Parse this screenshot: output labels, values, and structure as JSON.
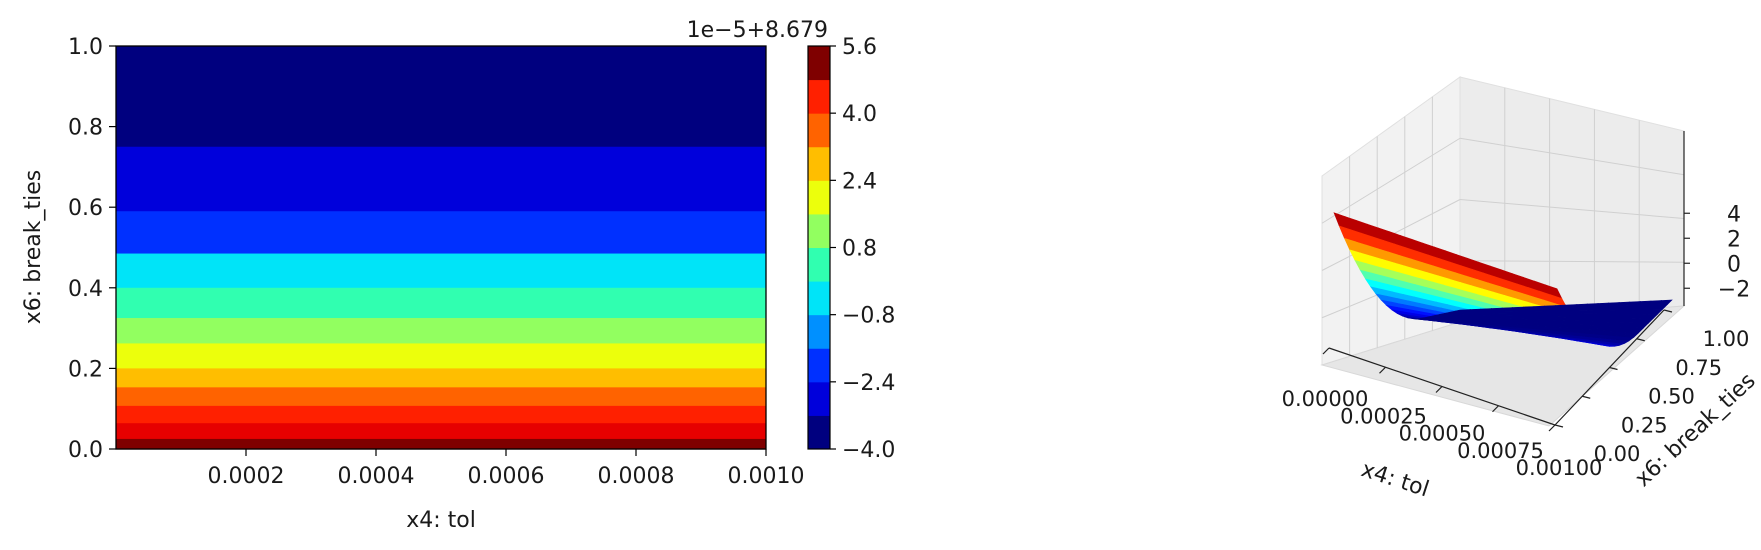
{
  "chart_data": [
    {
      "type": "heatmap",
      "subtype": "filled-contour",
      "xlabel": "x4: tol",
      "ylabel": "x6: break_ties",
      "xlim": [
        0.0,
        0.001
      ],
      "ylim": [
        0.0,
        1.0
      ],
      "x_ticks": [
        "0.0002",
        "0.0004",
        "0.0006",
        "0.0008",
        "0.0010"
      ],
      "y_ticks": [
        "0.0",
        "0.2",
        "0.4",
        "0.6",
        "0.8",
        "1.0"
      ],
      "colormap": "jet",
      "contour_bands": [
        {
          "y0": 0.75,
          "y1": 1.0,
          "color": "#00007f"
        },
        {
          "y0": 0.59,
          "y1": 0.75,
          "color": "#0000db"
        },
        {
          "y0": 0.485,
          "y1": 0.59,
          "color": "#0030ff"
        },
        {
          "y0": 0.4,
          "y1": 0.485,
          "color": "#00e4f8"
        },
        {
          "y0": 0.325,
          "y1": 0.4,
          "color": "#30ffb0"
        },
        {
          "y0": 0.262,
          "y1": 0.325,
          "color": "#92ff60"
        },
        {
          "y0": 0.2,
          "y1": 0.262,
          "color": "#ecff0c"
        },
        {
          "y0": 0.153,
          "y1": 0.2,
          "color": "#ffbe00"
        },
        {
          "y0": 0.107,
          "y1": 0.153,
          "color": "#ff6300"
        },
        {
          "y0": 0.064,
          "y1": 0.107,
          "color": "#ff2000"
        },
        {
          "y0": 0.025,
          "y1": 0.064,
          "color": "#e60000"
        },
        {
          "y0": 0.0,
          "y1": 0.025,
          "color": "#7f0000"
        }
      ],
      "colorbar": {
        "offset_label": "1e−5+8.679",
        "levels": [
          -4.0,
          -3.2,
          -2.4,
          -1.6,
          -0.8,
          0.0,
          0.8,
          1.6,
          2.4,
          3.2,
          4.0,
          4.8,
          5.6
        ],
        "tick_labels": [
          "5.6",
          "4.0",
          "2.4",
          "0.8",
          "−0.8",
          "−2.4",
          "−4.0"
        ],
        "tick_values": [
          5.6,
          4.0,
          2.4,
          0.8,
          -0.8,
          -2.4,
          -4.0
        ],
        "colors": [
          "#00007f",
          "#0000db",
          "#0030ff",
          "#0090ff",
          "#00e4f8",
          "#30ffb0",
          "#92ff60",
          "#ecff0c",
          "#ffbe00",
          "#ff6300",
          "#ff2000",
          "#7f0000"
        ]
      }
    },
    {
      "type": "surface3d",
      "xlabel": "x4: tol",
      "ylabel": "x6: break_ties",
      "xlim": [
        0.0,
        0.001
      ],
      "ylim": [
        0.0,
        1.0
      ],
      "zlim": [
        -3.6,
        5.6
      ],
      "x_ticks": [
        "0.00000",
        "0.00025",
        "0.00050",
        "0.00075",
        "0.00100"
      ],
      "y_ticks": [
        "0.00",
        "0.25",
        "0.50",
        "0.75",
        "1.00"
      ],
      "z_ticks": [
        "−2",
        "0",
        "2",
        "4"
      ],
      "z_tick_values": [
        -2,
        0,
        2,
        4
      ],
      "colormap": "jet",
      "description_note_free": true
    }
  ]
}
